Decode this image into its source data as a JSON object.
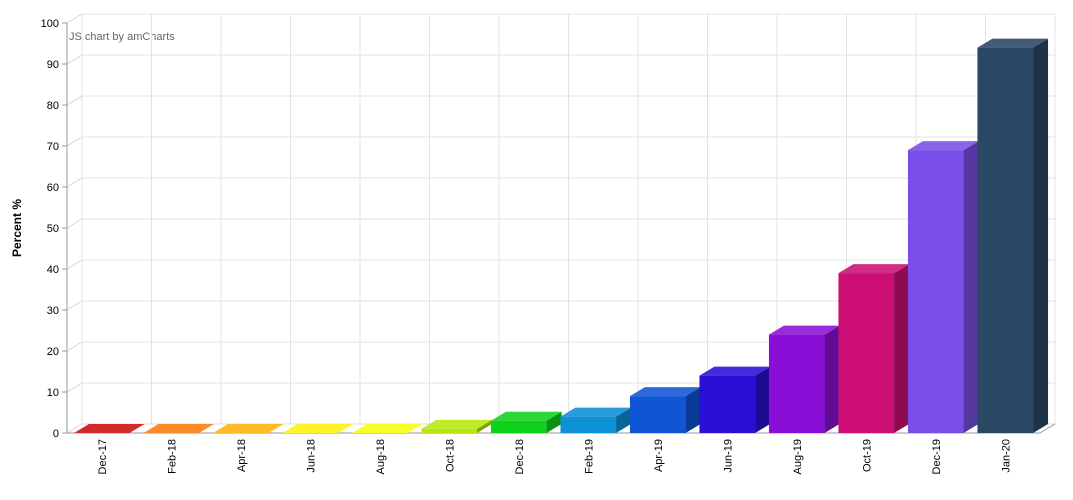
{
  "chart_data": {
    "type": "bar",
    "style": "3d-column",
    "categories": [
      "Dec-17",
      "Feb-18",
      "Apr-18",
      "Jun-18",
      "Aug-18",
      "Oct-18",
      "Dec-18",
      "Feb-19",
      "Apr-19",
      "Jun-19",
      "Aug-19",
      "Oct-19",
      "Dec-19",
      "Jan-20"
    ],
    "values": [
      0,
      0,
      0,
      0,
      0,
      1,
      3,
      4,
      9,
      14,
      24,
      39,
      69,
      94
    ],
    "colors": [
      "#cc0e0e",
      "#ff7a0b",
      "#ffb20a",
      "#fff10a",
      "#f7ff0b",
      "#b5e80a",
      "#0fd11c",
      "#0c90d6",
      "#0f55d6",
      "#2a0fd6",
      "#8a0fd6",
      "#cc0e74",
      "#7a4ee8",
      "#2a4763"
    ],
    "title": "",
    "xlabel": "",
    "ylabel": "Percent %",
    "ylim": [
      0,
      100
    ],
    "yticks": [
      0,
      10,
      20,
      30,
      40,
      50,
      60,
      70,
      80,
      90,
      100
    ],
    "grid": true,
    "legend": "none"
  },
  "credit": "JS chart by amCharts"
}
